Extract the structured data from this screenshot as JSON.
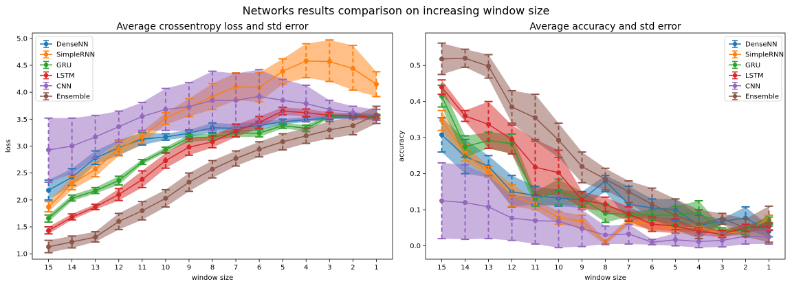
{
  "suptitle": "Networks results comparison on increasing window size",
  "colors": {
    "DenseNN": "#1f77b4",
    "SimpleRNN": "#ff7f0e",
    "GRU": "#2ca02c",
    "LSTM": "#d62728",
    "CNN": "#9467bd",
    "Ensemble": "#8c564b"
  },
  "chart_data": [
    {
      "type": "line",
      "title": "Average crossentropy loss and std error",
      "xlabel": "window size",
      "ylabel": "loss",
      "x": [
        15,
        14,
        13,
        12,
        11,
        10,
        9,
        8,
        7,
        6,
        5,
        4,
        3,
        2,
        1
      ],
      "x_reversed": true,
      "xticks": [
        "15",
        "14",
        "13",
        "12",
        "11",
        "10",
        "9",
        "8",
        "7",
        "6",
        "5",
        "4",
        "3",
        "2",
        "1"
      ],
      "ylim": [
        0.9,
        5.1
      ],
      "yticks": [
        "1.0",
        "1.5",
        "2.0",
        "2.5",
        "3.0",
        "3.5",
        "4.0",
        "4.5",
        "5.0"
      ],
      "ytick_values": [
        1.0,
        1.5,
        2.0,
        2.5,
        3.0,
        3.5,
        4.0,
        4.5,
        5.0
      ],
      "grid": false,
      "legend_position": "top-left",
      "series": [
        {
          "name": "DenseNN",
          "values": [
            2.18,
            2.42,
            2.78,
            2.97,
            3.13,
            3.17,
            3.24,
            3.34,
            3.33,
            3.38,
            3.45,
            3.49,
            3.52,
            3.55,
            3.55
          ],
          "lower": [
            2.0,
            2.27,
            2.66,
            2.83,
            3.02,
            3.11,
            3.17,
            3.25,
            3.25,
            3.3,
            3.4,
            3.45,
            3.49,
            3.52,
            3.52
          ],
          "upper": [
            2.37,
            2.58,
            2.91,
            3.11,
            3.25,
            3.23,
            3.3,
            3.43,
            3.41,
            3.46,
            3.5,
            3.54,
            3.56,
            3.58,
            3.58
          ]
        },
        {
          "name": "SimpleRNN",
          "values": [
            1.87,
            2.3,
            2.57,
            2.95,
            3.17,
            3.52,
            3.72,
            3.92,
            4.1,
            4.09,
            4.39,
            4.58,
            4.57,
            4.44,
            4.15
          ],
          "lower": [
            1.78,
            2.19,
            2.43,
            2.82,
            3.05,
            3.4,
            3.55,
            3.68,
            3.85,
            3.82,
            4.15,
            4.27,
            4.2,
            4.04,
            3.92
          ],
          "upper": [
            1.97,
            2.43,
            2.71,
            3.1,
            3.27,
            3.62,
            3.88,
            4.16,
            4.36,
            4.36,
            4.62,
            4.9,
            4.97,
            4.87,
            4.38
          ]
        },
        {
          "name": "GRU",
          "values": [
            1.66,
            2.03,
            2.17,
            2.36,
            2.7,
            2.93,
            3.15,
            3.17,
            3.24,
            3.24,
            3.38,
            3.33,
            3.55,
            3.57,
            3.55
          ],
          "lower": [
            1.59,
            1.98,
            2.12,
            2.28,
            2.66,
            2.88,
            3.08,
            3.11,
            3.17,
            3.17,
            3.33,
            3.27,
            3.51,
            3.53,
            3.51
          ],
          "upper": [
            1.72,
            2.09,
            2.23,
            2.44,
            2.75,
            2.98,
            3.21,
            3.23,
            3.3,
            3.3,
            3.43,
            3.39,
            3.59,
            3.61,
            3.59
          ]
        },
        {
          "name": "LSTM",
          "values": [
            1.43,
            1.68,
            1.87,
            2.1,
            2.38,
            2.73,
            2.98,
            3.08,
            3.28,
            3.44,
            3.65,
            3.62,
            3.57,
            3.57,
            3.52
          ],
          "lower": [
            1.37,
            1.63,
            1.82,
            1.99,
            2.23,
            2.59,
            2.83,
            2.97,
            3.17,
            3.33,
            3.58,
            3.55,
            3.51,
            3.53,
            3.48
          ],
          "upper": [
            1.5,
            1.74,
            1.92,
            2.21,
            2.54,
            2.87,
            3.13,
            3.19,
            3.4,
            3.55,
            3.72,
            3.69,
            3.63,
            3.61,
            3.56
          ]
        },
        {
          "name": "CNN",
          "values": [
            2.93,
            3.0,
            3.17,
            3.36,
            3.55,
            3.68,
            3.73,
            3.85,
            3.85,
            3.92,
            3.85,
            3.79,
            3.68,
            3.62,
            3.58
          ],
          "lower": [
            2.33,
            2.48,
            2.78,
            3.07,
            3.29,
            3.29,
            3.27,
            3.29,
            3.33,
            3.4,
            3.45,
            3.45,
            3.52,
            3.5,
            3.48
          ],
          "upper": [
            3.52,
            3.52,
            3.57,
            3.65,
            3.81,
            4.07,
            4.18,
            4.39,
            4.35,
            4.42,
            4.24,
            4.13,
            3.85,
            3.74,
            3.68
          ]
        },
        {
          "name": "Ensemble",
          "values": [
            1.13,
            1.22,
            1.31,
            1.6,
            1.8,
            2.03,
            2.33,
            2.57,
            2.77,
            2.94,
            3.08,
            3.19,
            3.3,
            3.38,
            3.58
          ],
          "lower": [
            1.02,
            1.11,
            1.22,
            1.45,
            1.63,
            1.87,
            2.16,
            2.41,
            2.63,
            2.8,
            2.93,
            3.05,
            3.14,
            3.21,
            3.42
          ],
          "upper": [
            1.25,
            1.33,
            1.41,
            1.75,
            1.97,
            2.19,
            2.5,
            2.73,
            2.91,
            3.08,
            3.23,
            3.33,
            3.46,
            3.55,
            3.74
          ]
        }
      ]
    },
    {
      "type": "line",
      "title": "Average accuracy and std error",
      "xlabel": "window size",
      "ylabel": "accuracy",
      "x": [
        15,
        14,
        13,
        12,
        11,
        10,
        9,
        8,
        7,
        6,
        5,
        4,
        3,
        2,
        1
      ],
      "x_reversed": true,
      "xticks": [
        "15",
        "14",
        "13",
        "12",
        "11",
        "10",
        "9",
        "8",
        "7",
        "6",
        "5",
        "4",
        "3",
        "2",
        "1"
      ],
      "ylim": [
        -0.037,
        0.59
      ],
      "yticks": [
        "0.0",
        "0.1",
        "0.2",
        "0.3",
        "0.4",
        "0.5"
      ],
      "ytick_values": [
        0.0,
        0.1,
        0.2,
        0.3,
        0.4,
        0.5
      ],
      "grid": false,
      "legend_position": "top-right",
      "series": [
        {
          "name": "DenseNN",
          "values": [
            0.308,
            0.248,
            0.22,
            0.15,
            0.14,
            0.132,
            0.128,
            0.18,
            0.115,
            0.105,
            0.1,
            0.057,
            0.068,
            0.077,
            0.04
          ],
          "lower": [
            0.26,
            0.2,
            0.19,
            0.108,
            0.115,
            0.11,
            0.105,
            0.15,
            0.07,
            0.08,
            0.07,
            0.03,
            0.06,
            0.045,
            0.025
          ],
          "upper": [
            0.355,
            0.295,
            0.25,
            0.195,
            0.165,
            0.155,
            0.15,
            0.195,
            0.165,
            0.13,
            0.13,
            0.085,
            0.075,
            0.108,
            0.055
          ]
        },
        {
          "name": "SimpleRNN",
          "values": [
            0.348,
            0.257,
            0.205,
            0.14,
            0.115,
            0.078,
            0.068,
            0.01,
            0.068,
            0.06,
            0.05,
            0.05,
            0.035,
            0.04,
            0.075
          ],
          "lower": [
            0.32,
            0.235,
            0.19,
            0.11,
            0.1,
            0.06,
            0.05,
            0.003,
            0.058,
            0.045,
            0.04,
            0.04,
            0.025,
            0.03,
            0.065
          ],
          "upper": [
            0.375,
            0.28,
            0.22,
            0.17,
            0.13,
            0.095,
            0.085,
            0.017,
            0.078,
            0.075,
            0.06,
            0.06,
            0.045,
            0.05,
            0.085
          ]
        },
        {
          "name": "GRU",
          "values": [
            0.415,
            0.275,
            0.292,
            0.283,
            0.13,
            0.15,
            0.13,
            0.09,
            0.087,
            0.085,
            0.085,
            0.093,
            0.04,
            0.042,
            0.07
          ],
          "lower": [
            0.385,
            0.245,
            0.27,
            0.255,
            0.11,
            0.115,
            0.11,
            0.065,
            0.08,
            0.07,
            0.06,
            0.06,
            0.03,
            0.03,
            0.06
          ],
          "upper": [
            0.445,
            0.305,
            0.315,
            0.31,
            0.15,
            0.185,
            0.15,
            0.115,
            0.094,
            0.1,
            0.11,
            0.125,
            0.05,
            0.054,
            0.08
          ]
        },
        {
          "name": "LSTM",
          "values": [
            0.44,
            0.36,
            0.337,
            0.295,
            0.218,
            0.203,
            0.127,
            0.115,
            0.088,
            0.06,
            0.055,
            0.04,
            0.033,
            0.05,
            0.053
          ],
          "lower": [
            0.42,
            0.345,
            0.27,
            0.255,
            0.14,
            0.14,
            0.105,
            0.095,
            0.068,
            0.04,
            0.035,
            0.03,
            0.023,
            0.04,
            0.043
          ],
          "upper": [
            0.46,
            0.375,
            0.4,
            0.335,
            0.295,
            0.265,
            0.15,
            0.135,
            0.108,
            0.08,
            0.075,
            0.05,
            0.043,
            0.06,
            0.063
          ]
        },
        {
          "name": "CNN",
          "values": [
            0.125,
            0.12,
            0.108,
            0.077,
            0.07,
            0.068,
            0.048,
            0.03,
            0.033,
            0.01,
            0.017,
            0.012,
            0.015,
            0.027,
            0.025
          ],
          "lower": [
            0.02,
            0.018,
            0.02,
            0.015,
            0.005,
            -0.005,
            -0.002,
            0.005,
            0.005,
            0.003,
            0.0,
            -0.005,
            -0.003,
            0.005,
            0.005
          ],
          "upper": [
            0.23,
            0.225,
            0.195,
            0.14,
            0.135,
            0.14,
            0.1,
            0.055,
            0.06,
            0.018,
            0.035,
            0.03,
            0.035,
            0.05,
            0.045
          ]
        },
        {
          "name": "Ensemble",
          "values": [
            0.518,
            0.52,
            0.498,
            0.385,
            0.355,
            0.293,
            0.22,
            0.185,
            0.15,
            0.115,
            0.085,
            0.06,
            0.075,
            0.05,
            0.06
          ],
          "lower": [
            0.475,
            0.495,
            0.465,
            0.34,
            0.29,
            0.245,
            0.175,
            0.155,
            0.12,
            0.075,
            0.045,
            0.02,
            0.06,
            0.025,
            0.01
          ],
          "upper": [
            0.562,
            0.545,
            0.53,
            0.43,
            0.42,
            0.34,
            0.26,
            0.215,
            0.18,
            0.16,
            0.13,
            0.1,
            0.09,
            0.075,
            0.11
          ]
        }
      ]
    }
  ]
}
